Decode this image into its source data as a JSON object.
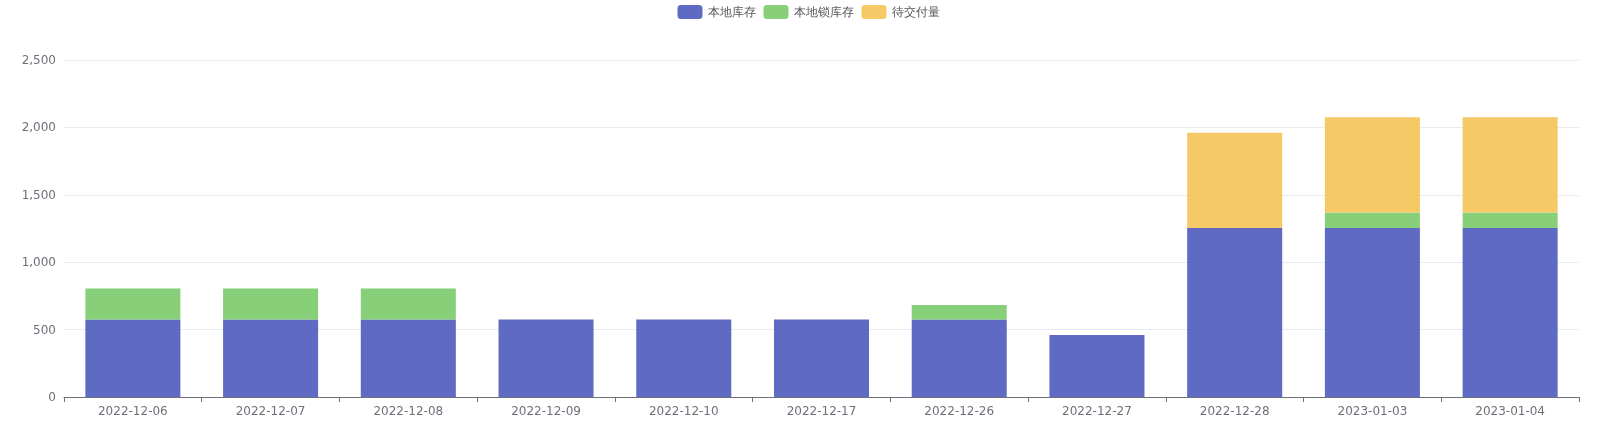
{
  "chart_data": {
    "type": "bar",
    "stacked": true,
    "categories": [
      "2022-12-06",
      "2022-12-07",
      "2022-12-08",
      "2022-12-09",
      "2022-12-10",
      "2022-12-17",
      "2022-12-26",
      "2022-12-27",
      "2022-12-28",
      "2023-01-03",
      "2023-01-04"
    ],
    "series": [
      {
        "name": "本地库存",
        "color": "#5f6bc2",
        "values": [
          575,
          575,
          575,
          575,
          575,
          575,
          575,
          460,
          1254,
          1254,
          1254
        ]
      },
      {
        "name": "本地锁库存",
        "color": "#88cf7a",
        "values": [
          230,
          230,
          230,
          0,
          0,
          0,
          107,
          0,
          0,
          115,
          115
        ]
      },
      {
        "name": "待交付量",
        "color": "#f5c966",
        "values": [
          0,
          0,
          0,
          0,
          0,
          0,
          0,
          0,
          706,
          707,
          707
        ]
      }
    ],
    "ylim": [
      0,
      2500
    ],
    "yticks": [
      0,
      500,
      {
        "value": 1000,
        "label": "1,000"
      },
      {
        "value": 1500,
        "label": "1,500"
      },
      {
        "value": 2000,
        "label": "2,000"
      },
      {
        "value": 2500,
        "label": "2,500"
      }
    ],
    "grid": "y",
    "legend": "top"
  }
}
